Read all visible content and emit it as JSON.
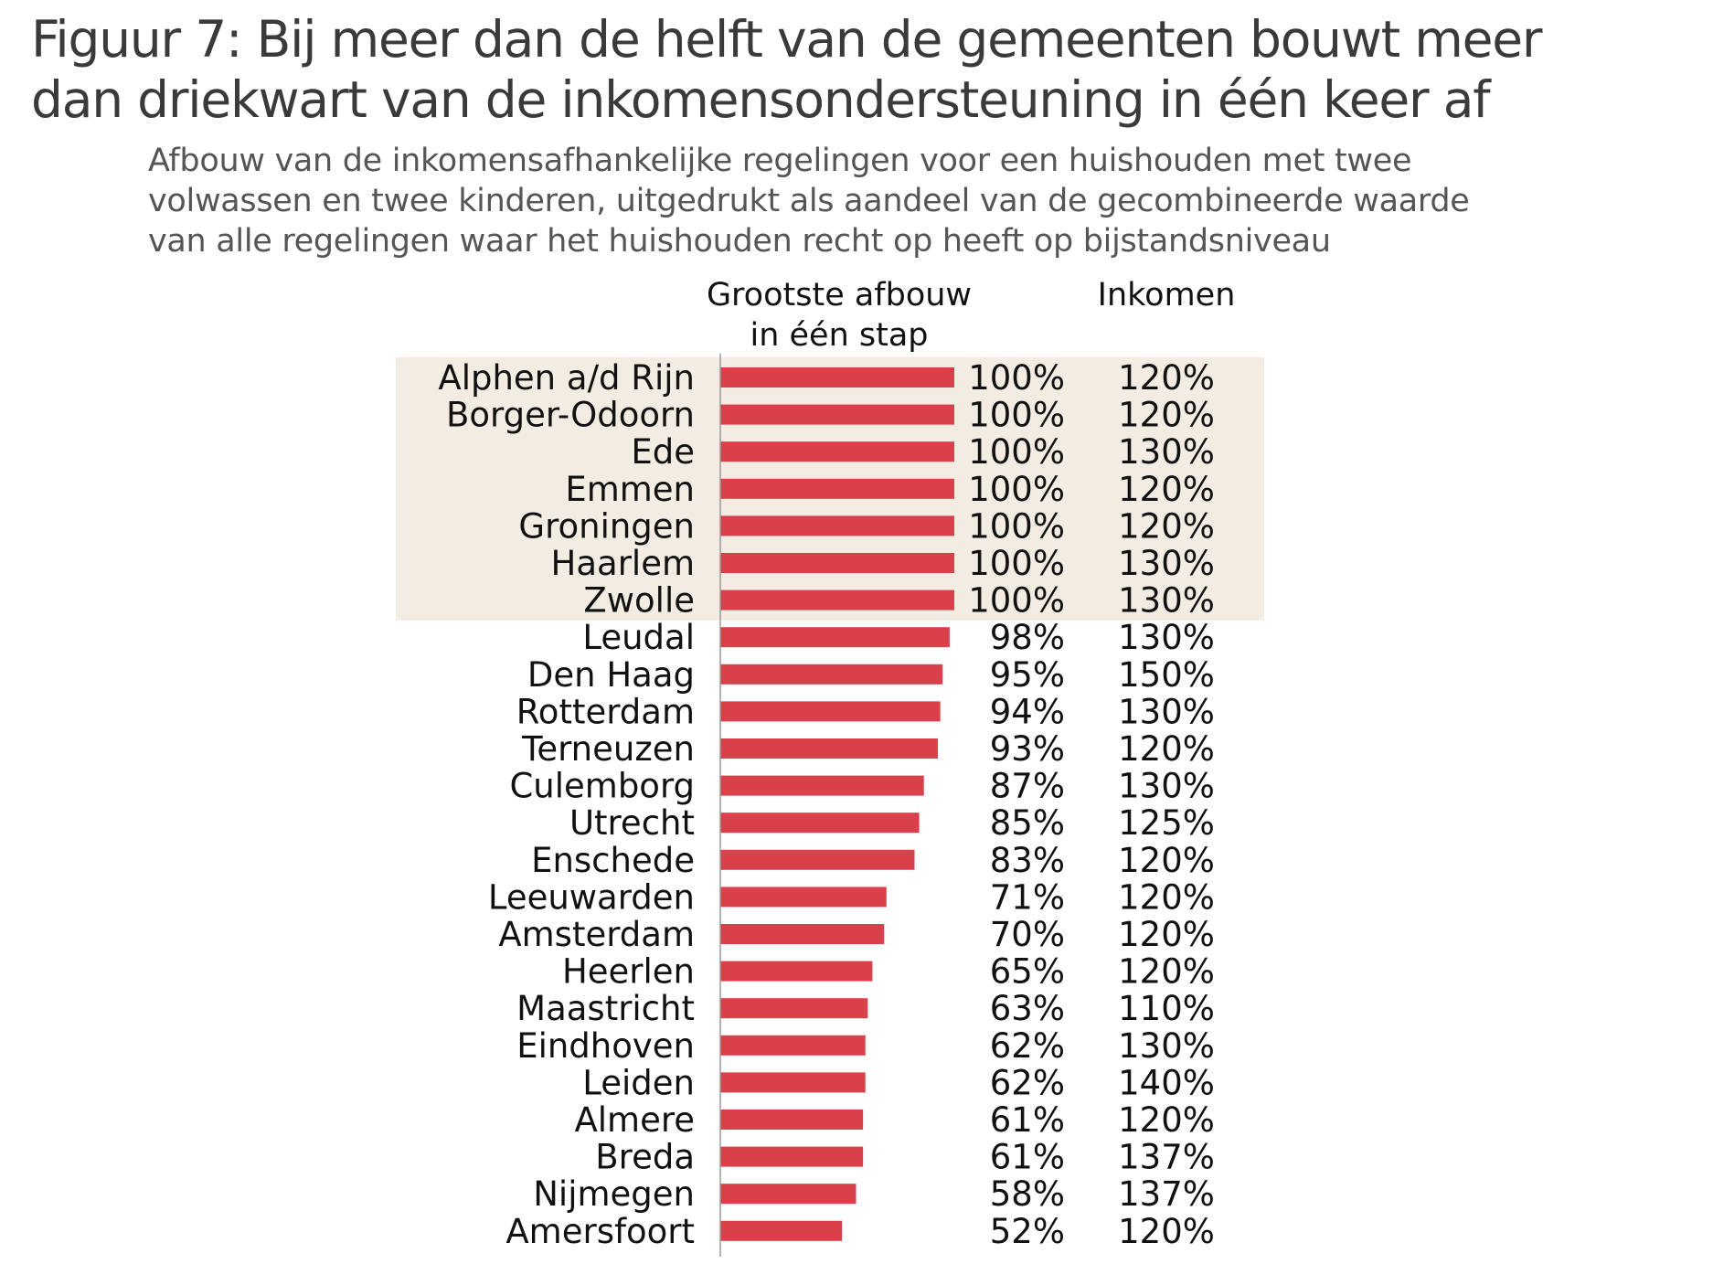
{
  "title": {
    "line1": "Figuur 7: Bij meer dan de helft van de gemeenten bouwt meer",
    "line2": "dan driekwart van de inkomensondersteuning in één keer af"
  },
  "subtitle": {
    "line1": "Afbouw van de inkomensafhankelijke regelingen voor een huishouden met twee",
    "line2": "volwassen en twee kinderen, uitgedrukt als aandeel van de gecombineerde waarde",
    "line3": "van alle regelingen waar het huishouden recht op heeft op bijstandsniveau"
  },
  "colors": {
    "bar": "#d9404a",
    "highlight": "#f3ece2",
    "axis": "#9a9a9a",
    "text": "#111111"
  },
  "chart_data": {
    "type": "bar",
    "orientation": "horizontal",
    "title": "Figuur 7: Bij meer dan de helft van de gemeenten bouwt meer dan driekwart van de inkomensondersteuning in één keer af",
    "column_headers": {
      "bars": [
        "Grootste afbouw",
        "in één stap"
      ],
      "income": "Inkomen"
    },
    "xlim": [
      0,
      100
    ],
    "highlight_count": 7,
    "categories": [
      "Alphen a/d Rijn",
      "Borger-Odoorn",
      "Ede",
      "Emmen",
      "Groningen",
      "Haarlem",
      "Zwolle",
      "Leudal",
      "Den Haag",
      "Rotterdam",
      "Terneuzen",
      "Culemborg",
      "Utrecht",
      "Enschede",
      "Leeuwarden",
      "Amsterdam",
      "Heerlen",
      "Maastricht",
      "Eindhoven",
      "Leiden",
      "Almere",
      "Breda",
      "Nijmegen",
      "Amersfoort"
    ],
    "values": [
      100,
      100,
      100,
      100,
      100,
      100,
      100,
      98,
      95,
      94,
      93,
      87,
      85,
      83,
      71,
      70,
      65,
      63,
      62,
      62,
      61,
      61,
      58,
      52
    ],
    "value_labels": [
      "100%",
      "100%",
      "100%",
      "100%",
      "100%",
      "100%",
      "100%",
      "98%",
      "95%",
      "94%",
      "93%",
      "87%",
      "85%",
      "83%",
      "71%",
      "70%",
      "65%",
      "63%",
      "62%",
      "62%",
      "61%",
      "61%",
      "58%",
      "52%"
    ],
    "income_labels": [
      "120%",
      "120%",
      "130%",
      "120%",
      "120%",
      "130%",
      "130%",
      "130%",
      "150%",
      "130%",
      "120%",
      "130%",
      "125%",
      "120%",
      "120%",
      "120%",
      "120%",
      "110%",
      "130%",
      "140%",
      "120%",
      "137%",
      "137%",
      "120%"
    ]
  }
}
